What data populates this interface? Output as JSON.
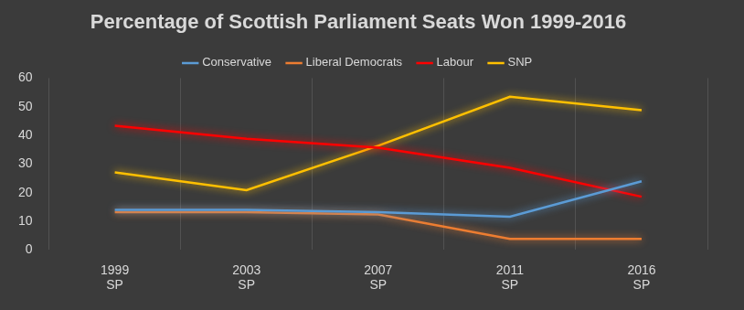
{
  "chart_data": {
    "type": "line",
    "title": "Percentage of Scottish Parliament Seats Won 1999-2016",
    "categories": [
      [
        "1999",
        "SP"
      ],
      [
        "2003",
        "SP"
      ],
      [
        "2007",
        "SP"
      ],
      [
        "2011",
        "SP"
      ],
      [
        "2016",
        "SP"
      ]
    ],
    "series": [
      {
        "name": "Conservative",
        "color": "#5b9bd5",
        "values": [
          14.0,
          14.0,
          13.2,
          11.6,
          24.0
        ]
      },
      {
        "name": "Liberal Democrats",
        "color": "#ed7d31",
        "values": [
          13.2,
          13.2,
          12.4,
          3.9,
          3.9
        ]
      },
      {
        "name": "Labour",
        "color": "#ff0000",
        "values": [
          43.4,
          38.8,
          35.7,
          28.7,
          18.6
        ]
      },
      {
        "name": "SNP",
        "color": "#ffc000",
        "values": [
          27.1,
          20.9,
          36.4,
          53.5,
          48.8
        ]
      }
    ],
    "ylim": [
      0,
      60
    ],
    "yticks": [
      0,
      10,
      20,
      30,
      40,
      50,
      60
    ],
    "grid": true,
    "legend": "top"
  }
}
